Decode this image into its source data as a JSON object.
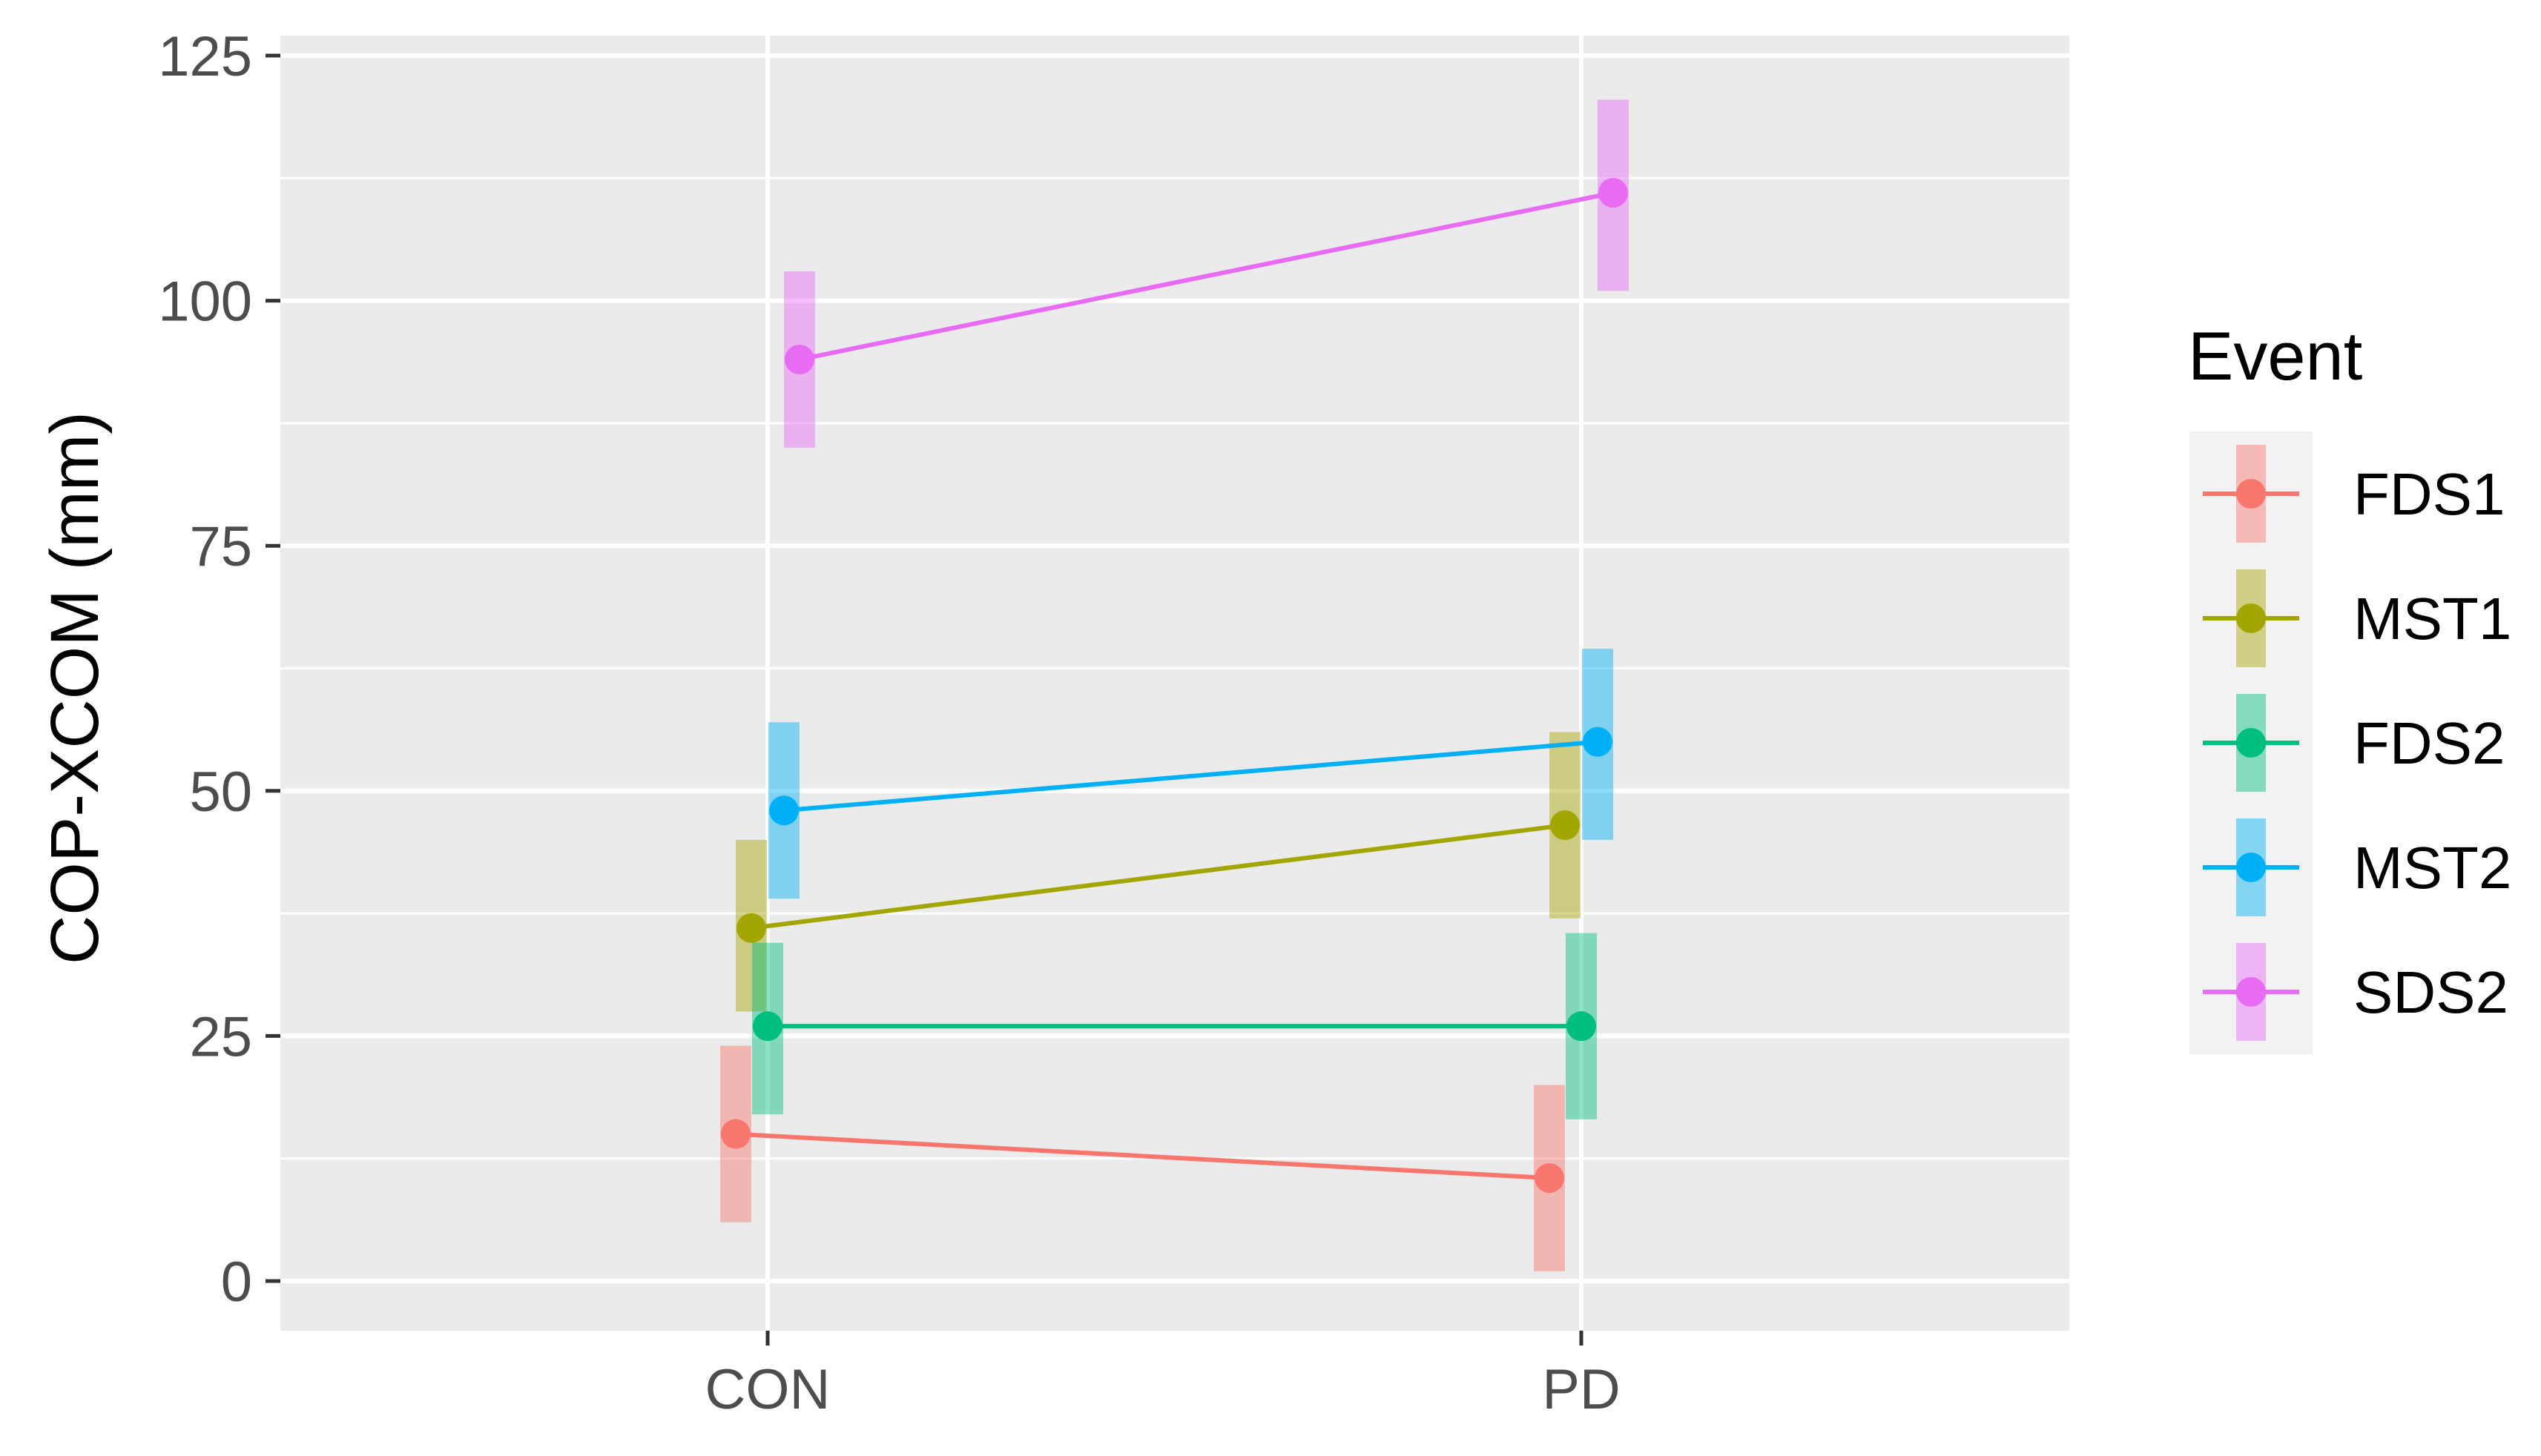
{
  "chart_data": {
    "type": "line",
    "title": "",
    "xlabel": "",
    "ylabel": "COP-XCOM (mm)",
    "categories": [
      "CON",
      "PD"
    ],
    "ylim": [
      -5,
      128
    ],
    "yticks": [
      0,
      25,
      50,
      75,
      100,
      125
    ],
    "grid": true,
    "background": "#ebebeb",
    "legend": {
      "title": "Event",
      "placement": "right"
    },
    "error_bars": "shown as translucent vertical bands around each point",
    "series": [
      {
        "name": "FDS1",
        "color": "#F8766D",
        "values": [
          15,
          10.5
        ],
        "lower": [
          6,
          1
        ],
        "upper": [
          24,
          20
        ]
      },
      {
        "name": "MST1",
        "color": "#A3A500",
        "values": [
          36,
          46.5
        ],
        "lower": [
          27.5,
          37
        ],
        "upper": [
          45,
          56
        ]
      },
      {
        "name": "FDS2",
        "color": "#00BF7D",
        "values": [
          26,
          26
        ],
        "lower": [
          17,
          16.5
        ],
        "upper": [
          34.5,
          35.5
        ]
      },
      {
        "name": "MST2",
        "color": "#00B0F6",
        "values": [
          48,
          55
        ],
        "lower": [
          39,
          45
        ],
        "upper": [
          57,
          64.5
        ]
      },
      {
        "name": "SDS2",
        "color": "#E76BF3",
        "values": [
          94,
          111
        ],
        "lower": [
          85,
          101
        ],
        "upper": [
          103,
          120.5
        ]
      }
    ]
  }
}
